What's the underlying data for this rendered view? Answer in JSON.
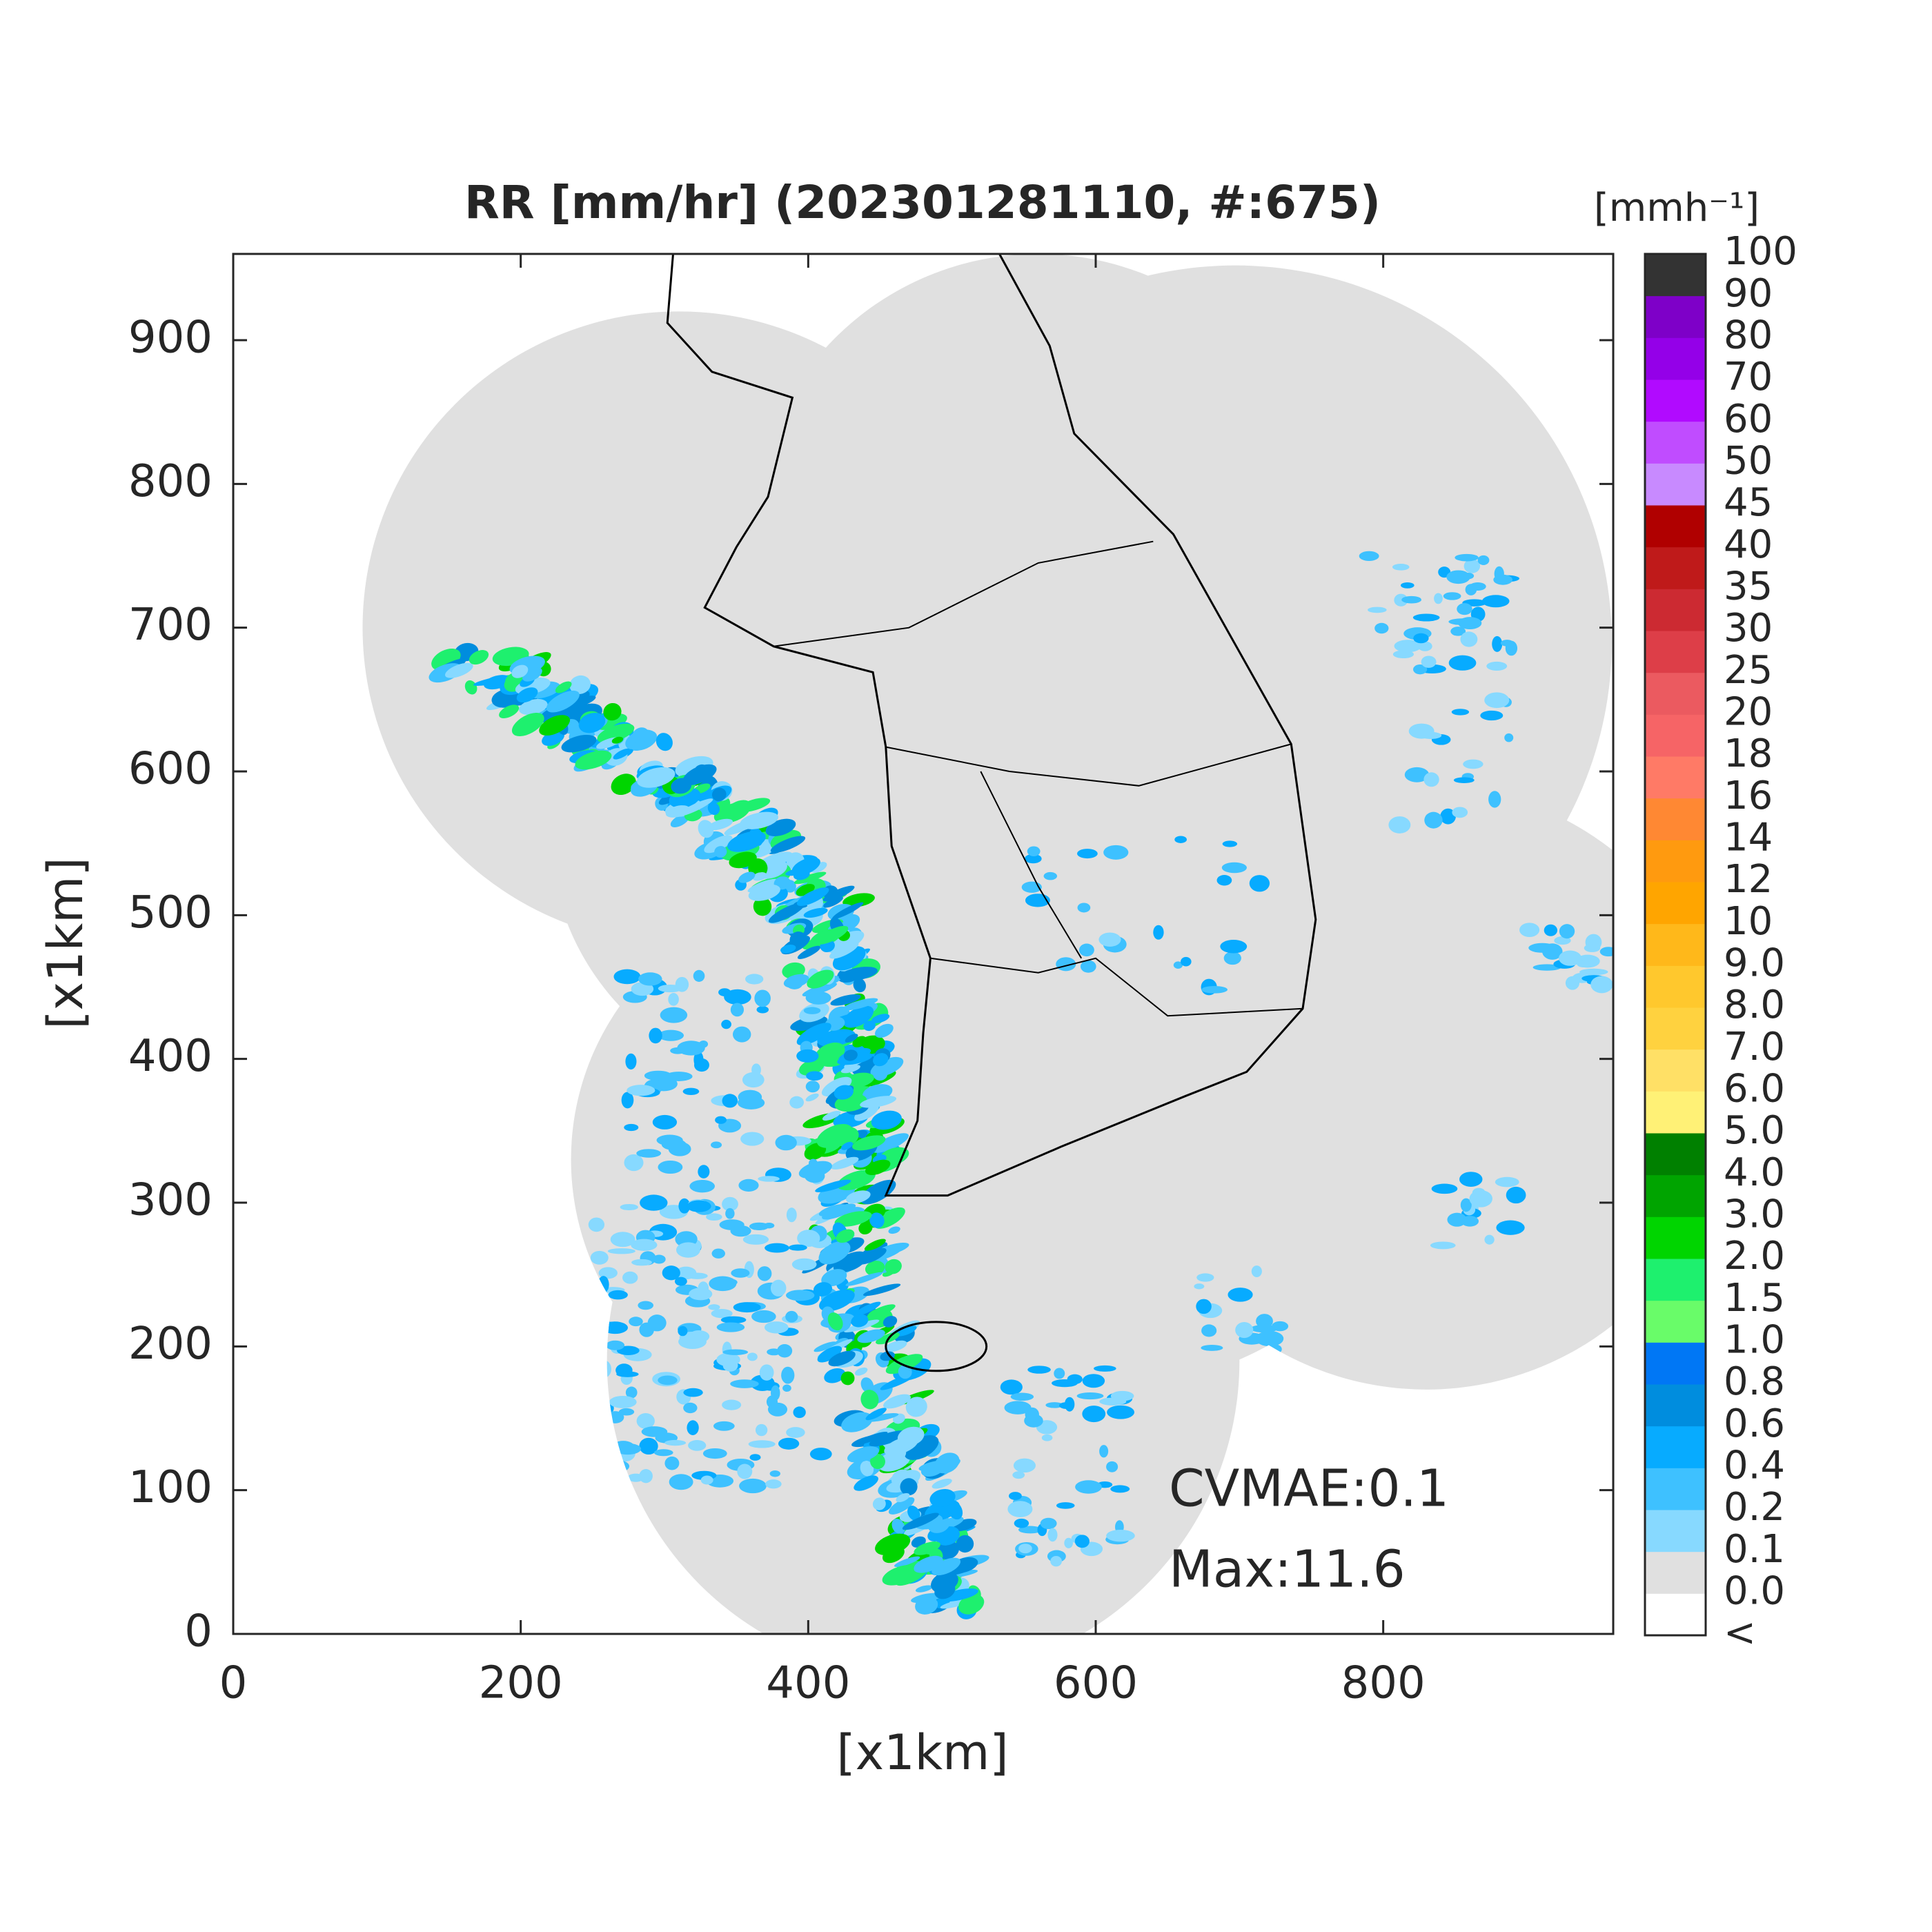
{
  "chart_data": {
    "type": "map",
    "title": "RR [mm/hr] (202301281110, #:675)",
    "xlabel": "[x1km]",
    "ylabel": "[x1km]",
    "xlim": [
      0,
      960
    ],
    "ylim": [
      0,
      960
    ],
    "xticks": [
      0,
      200,
      400,
      600,
      800
    ],
    "yticks": [
      0,
      100,
      200,
      300,
      400,
      500,
      600,
      700,
      800,
      900
    ],
    "annotations": [
      "CVMAE:0.1",
      "Max:11.6"
    ],
    "colorbar": {
      "title": "[mmh⁻¹]",
      "labels": [
        "<",
        "0.0",
        "0.1",
        "0.2",
        "0.4",
        "0.6",
        "0.8",
        "1.0",
        "1.5",
        "2.0",
        "3.0",
        "4.0",
        "5.0",
        "6.0",
        "7.0",
        "8.0",
        "9.0",
        "10",
        "12",
        "14",
        "16",
        "18",
        "20",
        "25",
        "30",
        "35",
        "40",
        "45",
        "50",
        "60",
        "70",
        "80",
        "90",
        "100"
      ],
      "colors": [
        "#ffffff",
        "#e0e0e0",
        "#87d9ff",
        "#3ec1ff",
        "#07abff",
        "#008dde",
        "#0077f5",
        "#69fc69",
        "#1ef06e",
        "#00d500",
        "#00a400",
        "#008000",
        "#fff176",
        "#ffe066",
        "#ffd23f",
        "#ffc82d",
        "#ffb81a",
        "#ffa500",
        "#ff9a0f",
        "#ff8833",
        "#ff7a66",
        "#f66466",
        "#eb5a60",
        "#dd3e48",
        "#cc2a32",
        "#bf1a1a",
        "#b00000",
        "#c88aff",
        "#c04cff",
        "#b10aff",
        "#9400e8",
        "#7e00c8",
        "#333333"
      ]
    }
  }
}
